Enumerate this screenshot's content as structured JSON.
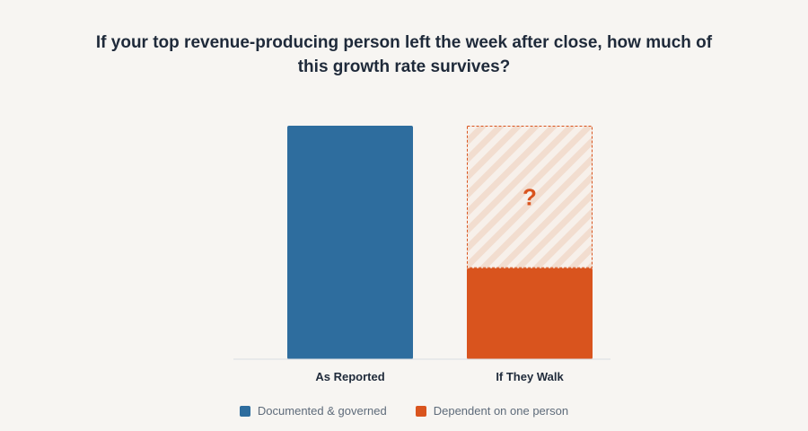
{
  "chart_data": {
    "type": "bar",
    "stacked": true,
    "title": "If your top revenue-producing person left the week after close, how much of this growth rate survives?",
    "xlabel": "",
    "ylabel": "",
    "categories": [
      "As Reported",
      "If They Walk"
    ],
    "ylim": [
      0,
      100
    ],
    "grid": false,
    "legend_position": "bottom-center",
    "series": [
      {
        "name": "Documented & governed",
        "color": "#2e6d9e",
        "values": [
          100,
          0
        ]
      },
      {
        "name": "Dependent on one person",
        "color": "#d9541e",
        "values": [
          0,
          39
        ]
      }
    ],
    "unknown_remainder": {
      "category": "If They Walk",
      "value": 61,
      "annotation": "?",
      "color": "#d9541e"
    }
  }
}
